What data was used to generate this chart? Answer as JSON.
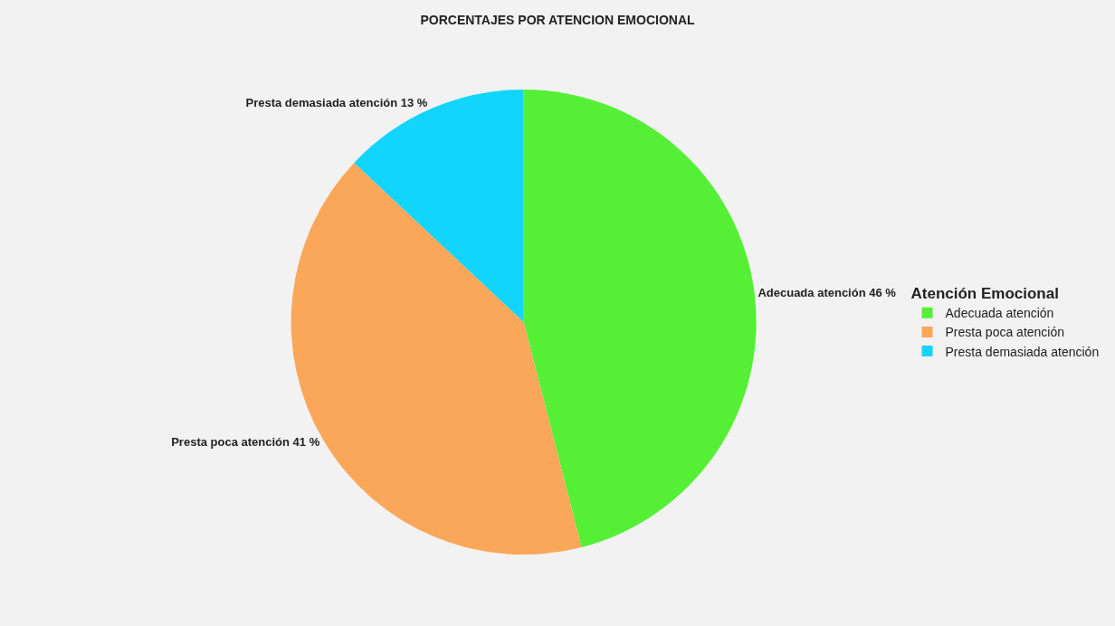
{
  "chart_data": {
    "type": "pie",
    "title": "PORCENTAJES POR ATENCION EMOCIONAL",
    "legend_title": "Atención Emocional",
    "categories": [
      "Adecuada atención",
      "Presta poca atención",
      "Presta demasiada atención"
    ],
    "values": [
      46,
      41,
      13
    ],
    "colors": [
      "#55f035",
      "#fba75a",
      "#12d5fc"
    ],
    "value_labels": [
      "Adecuada atención 46 %",
      "Presta poca atención 41 %",
      "Presta demasiada atención 13 %"
    ],
    "legend": "right"
  }
}
